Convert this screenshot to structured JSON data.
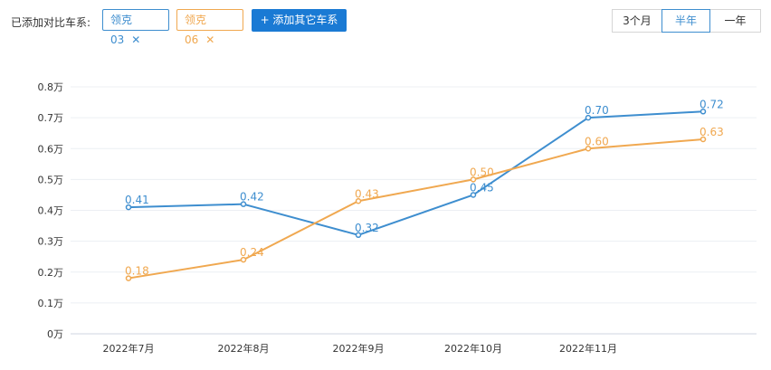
{
  "header": {
    "compare_label": "已添加对比车系:",
    "series_tags": [
      {
        "label": "领克03",
        "color": "#3e8ecf"
      },
      {
        "label": "领克06",
        "color": "#f0a850"
      }
    ],
    "remove_icon": "close-icon",
    "add_button": "+ 添加其它车系",
    "periods": [
      {
        "label": "3个月",
        "selected": false
      },
      {
        "label": "半年",
        "selected": true
      },
      {
        "label": "一年",
        "selected": false
      }
    ],
    "accent_color": "#1a7ad4"
  },
  "chart_data": {
    "type": "line",
    "categories": [
      "2022年7月",
      "2022年8月",
      "2022年9月",
      "2022年10月",
      "2022年11月",
      ""
    ],
    "series": [
      {
        "name": "领克03",
        "color": "#3e8ecf",
        "values": [
          0.41,
          0.42,
          0.32,
          0.45,
          0.7,
          0.72
        ],
        "labels": [
          "0.41",
          "0.42",
          "0.32",
          "0.45",
          "0.70",
          "0.72"
        ]
      },
      {
        "name": "领克06",
        "color": "#f0a850",
        "values": [
          0.18,
          0.24,
          0.43,
          0.5,
          0.6,
          0.63
        ],
        "labels": [
          "0.18",
          "0.24",
          "0.43",
          "0.50",
          "0.60",
          "0.63"
        ]
      }
    ],
    "ylim": [
      0,
      0.8
    ],
    "yticks": [
      {
        "value": 0,
        "label": "0万"
      },
      {
        "value": 0.1,
        "label": "0.1万"
      },
      {
        "value": 0.2,
        "label": "0.2万"
      },
      {
        "value": 0.3,
        "label": "0.3万"
      },
      {
        "value": 0.4,
        "label": "0.4万"
      },
      {
        "value": 0.5,
        "label": "0.5万"
      },
      {
        "value": 0.6,
        "label": "0.6万"
      },
      {
        "value": 0.7,
        "label": "0.7万"
      },
      {
        "value": 0.8,
        "label": "0.8万"
      }
    ],
    "grid": true,
    "xlabel": "",
    "ylabel": ""
  }
}
